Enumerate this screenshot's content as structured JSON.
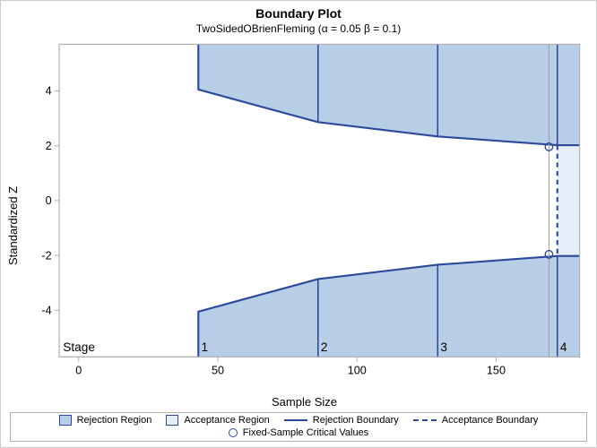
{
  "title": "Boundary Plot",
  "subtitle": "TwoSidedOBrienFleming (α = 0.05  β = 0.1)",
  "yaxis_label": "Standardized Z",
  "xaxis_label": "Sample Size",
  "stage_word": "Stage",
  "chart": {
    "type": "boundary-plot",
    "xlim": [
      -7,
      180
    ],
    "ylim": [
      -5.7,
      5.7
    ],
    "xticks": [
      0,
      50,
      100,
      150
    ],
    "yticks": [
      -4,
      -2,
      0,
      2,
      4
    ],
    "background_color": "#ffffff",
    "frame_color": "#b0b0b0",
    "rejection_fill": "#b8cde6",
    "acceptance_fill": "#e6edf7",
    "boundary_color": "#2b4a9b",
    "tick_fontsize": 12,
    "label_fontsize": 13,
    "title_fontsize": 14,
    "stages": [
      {
        "n": 43,
        "z": 4.05,
        "label": "1"
      },
      {
        "n": 86,
        "z": 2.86,
        "label": "2"
      },
      {
        "n": 129,
        "z": 2.34,
        "label": "3"
      },
      {
        "n": 172,
        "z": 2.02,
        "label": "4"
      }
    ],
    "acceptance_stage_n": 172,
    "acceptance_z": 2.02,
    "fixed_sample": {
      "n": 169,
      "z": 1.96
    }
  },
  "legend": {
    "rejection_region": "Rejection Region",
    "acceptance_region": "Acceptance Region",
    "rejection_boundary": "Rejection Boundary",
    "acceptance_boundary": "Acceptance Boundary",
    "fixed_sample": "Fixed-Sample Critical Values"
  }
}
